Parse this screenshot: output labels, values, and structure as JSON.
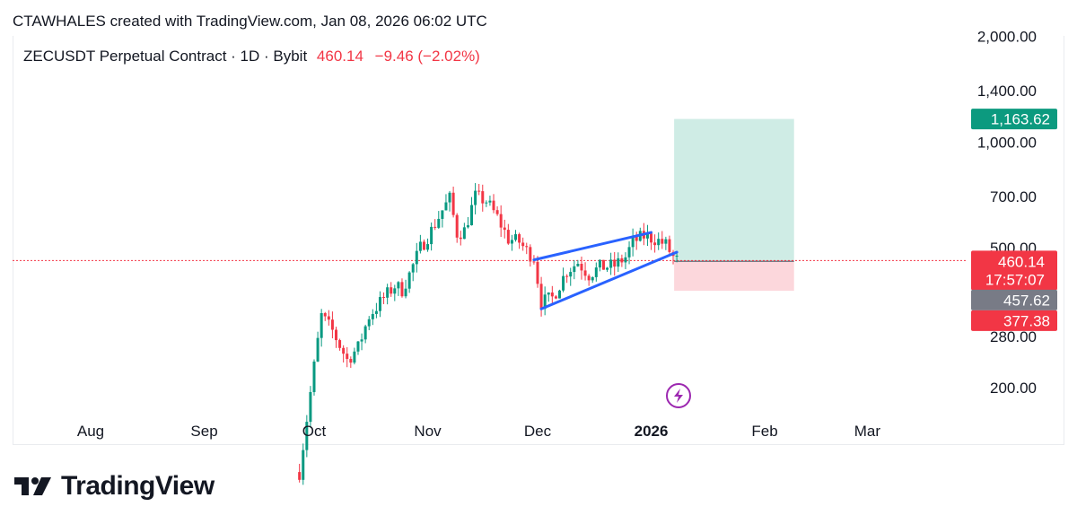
{
  "attribution": "CTAWHALES created with TradingView.com, Jan 08, 2026 06:02 UTC",
  "legend": {
    "symbol": "ZECUSDT Perpetual Contract · 1D · Bybit",
    "price": "460.14",
    "change": "−9.46 (−2.02%)"
  },
  "colors": {
    "up": "#089981",
    "down": "#f23645",
    "wedge": "#2962ff",
    "target_zone": "#cfece5",
    "stop_zone": "#fcd7dc",
    "current_line": "#f23645",
    "lightning": "#9c27b0"
  },
  "tags": {
    "target": "1,163.62",
    "current_price": "460.14",
    "countdown": "17:57:07",
    "entry": "457.62",
    "stop": "377.38"
  },
  "brand": "TradingView",
  "chart_data": {
    "type": "candlestick",
    "log_scale": true,
    "y_ticks": [
      "2,000.00",
      "1,400.00",
      "1,000.00",
      "700.00",
      "500.00",
      "280.00",
      "200.00"
    ],
    "x_ticks": [
      "Aug",
      "Sep",
      "Oct",
      "Nov",
      "Dec",
      "2026",
      "Feb",
      "Mar"
    ],
    "x_tick_bold": "2026",
    "close_points": [
      [
        "2025-09-27",
        115
      ],
      [
        "2025-10-01",
        230
      ],
      [
        "2025-10-03",
        320
      ],
      [
        "2025-10-06",
        290
      ],
      [
        "2025-10-10",
        240
      ],
      [
        "2025-10-13",
        260
      ],
      [
        "2025-10-16",
        320
      ],
      [
        "2025-10-20",
        360
      ],
      [
        "2025-10-23",
        390
      ],
      [
        "2025-10-25",
        380
      ],
      [
        "2025-10-27",
        420
      ],
      [
        "2025-10-30",
        500
      ],
      [
        "2025-11-02",
        560
      ],
      [
        "2025-11-05",
        640
      ],
      [
        "2025-11-07",
        690
      ],
      [
        "2025-11-09",
        550
      ],
      [
        "2025-11-11",
        560
      ],
      [
        "2025-11-14",
        700
      ],
      [
        "2025-11-17",
        680
      ],
      [
        "2025-11-20",
        610
      ],
      [
        "2025-11-23",
        530
      ],
      [
        "2025-11-26",
        520
      ],
      [
        "2025-11-28",
        490
      ],
      [
        "2025-11-30",
        470
      ],
      [
        "2025-12-02",
        350
      ],
      [
        "2025-12-05",
        360
      ],
      [
        "2025-12-09",
        430
      ],
      [
        "2025-12-12",
        455
      ],
      [
        "2025-12-15",
        420
      ],
      [
        "2025-12-18",
        440
      ],
      [
        "2025-12-22",
        445
      ],
      [
        "2025-12-25",
        470
      ],
      [
        "2025-12-27",
        520
      ],
      [
        "2025-12-30",
        540
      ],
      [
        "2026-01-02",
        530
      ],
      [
        "2026-01-05",
        510
      ],
      [
        "2026-01-07",
        470
      ],
      [
        "2026-01-08",
        460.14
      ]
    ],
    "wedge_upper": [
      [
        "2025-11-30",
        462
      ],
      [
        "2026-01-01",
        553
      ]
    ],
    "wedge_lower": [
      [
        "2025-12-02",
        335
      ],
      [
        "2026-01-08",
        486
      ]
    ],
    "position": {
      "start": "2026-01-08",
      "end": "2026-02-09",
      "entry": 457.62,
      "target": 1163.62,
      "stop": 377.38
    },
    "current_price": 460.14,
    "y_range": [
      170,
      2100
    ]
  }
}
